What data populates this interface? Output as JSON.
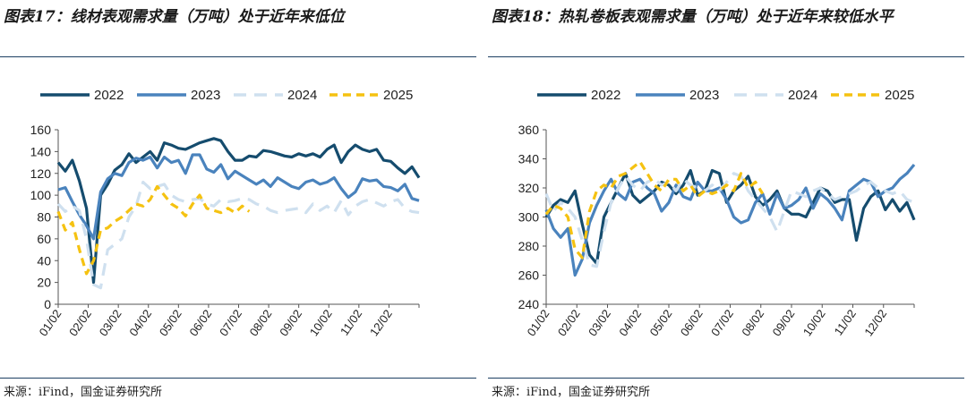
{
  "panels": [
    {
      "title": "图表17：线材表观需求量（万吨）处于近年来低位",
      "source": "来源：iFind，国金证券研究所"
    },
    {
      "title": "图表18：热轧卷板表观需求量（万吨）处于近年来较低水平",
      "source": "来源：iFind，国金证券研究所"
    }
  ],
  "colors": {
    "2022": "#154c6e",
    "2023": "#4a83bd",
    "2024": "#cfe0ef",
    "2025": "#f5c211",
    "rule": "#1d3f63"
  },
  "chart_data": [
    {
      "type": "line",
      "ylim": [
        0,
        160
      ],
      "yticks": [
        0,
        20,
        40,
        60,
        80,
        100,
        120,
        140,
        160
      ],
      "xlim": [
        0,
        51
      ],
      "xticks": [
        "01/02",
        "02/02",
        "03/02",
        "04/02",
        "05/02",
        "06/02",
        "07/02",
        "08/02",
        "09/02",
        "10/02",
        "11/02",
        "12/02"
      ],
      "grid": false,
      "legend_position": "top",
      "series": [
        {
          "name": "2022",
          "style": "solid",
          "x": [
            0,
            1,
            2,
            3,
            4,
            5,
            6,
            7,
            8,
            9,
            10,
            11,
            12,
            13,
            14,
            15,
            16,
            17,
            18,
            19,
            20,
            21,
            22,
            23,
            24,
            25,
            26,
            27,
            28,
            29,
            30,
            31,
            32,
            33,
            34,
            35,
            36,
            37,
            38,
            39,
            40,
            41,
            42,
            43,
            44,
            45,
            46,
            47,
            48,
            49,
            50,
            51
          ],
          "values": [
            130,
            122,
            132,
            113,
            88,
            20,
            100,
            110,
            123,
            128,
            138,
            130,
            135,
            140,
            132,
            148,
            146,
            143,
            142,
            145,
            148,
            150,
            152,
            150,
            140,
            132,
            132,
            136,
            135,
            141,
            140,
            138,
            136,
            135,
            138,
            136,
            138,
            135,
            142,
            146,
            130,
            140,
            146,
            142,
            140,
            142,
            132,
            131,
            125,
            120,
            126,
            116
          ]
        },
        {
          "name": "2023",
          "style": "solid",
          "x": [
            0,
            1,
            2,
            3,
            4,
            5,
            6,
            7,
            8,
            9,
            10,
            11,
            12,
            13,
            14,
            15,
            16,
            17,
            18,
            19,
            20,
            21,
            22,
            23,
            24,
            25,
            26,
            27,
            28,
            29,
            30,
            31,
            32,
            33,
            34,
            35,
            36,
            37,
            38,
            39,
            40,
            41,
            42,
            43,
            44,
            45,
            46,
            47,
            48,
            49,
            50,
            51
          ],
          "values": [
            105,
            107,
            94,
            82,
            72,
            60,
            103,
            115,
            120,
            118,
            130,
            134,
            132,
            135,
            125,
            135,
            130,
            132,
            120,
            137,
            137,
            124,
            121,
            128,
            115,
            122,
            118,
            114,
            110,
            114,
            108,
            116,
            112,
            108,
            106,
            112,
            114,
            110,
            112,
            116,
            106,
            98,
            103,
            115,
            113,
            114,
            108,
            107,
            104,
            110,
            97,
            95
          ]
        },
        {
          "name": "2024",
          "style": "dashed",
          "x": [
            0,
            1,
            2,
            3,
            4,
            5,
            6,
            7,
            8,
            9,
            10,
            11,
            12,
            13,
            14,
            15,
            16,
            17,
            18,
            19,
            20,
            21,
            22,
            23,
            24,
            25,
            26,
            27,
            28,
            29,
            30,
            31,
            32,
            33,
            34,
            35,
            36,
            37,
            38,
            39,
            40,
            41,
            42,
            43,
            44,
            45,
            46,
            47,
            48,
            49,
            50,
            51
          ],
          "values": [
            92,
            85,
            90,
            86,
            60,
            18,
            15,
            50,
            55,
            60,
            80,
            90,
            112,
            106,
            108,
            110,
            100,
            96,
            94,
            96,
            97,
            92,
            90,
            96,
            94,
            95,
            97,
            96,
            92,
            90,
            86,
            84,
            86,
            87,
            88,
            84,
            92,
            86,
            90,
            84,
            95,
            82,
            90,
            94,
            96,
            93,
            90,
            94,
            96,
            88,
            85,
            84
          ]
        },
        {
          "name": "2025",
          "style": "dashed",
          "x": [
            0,
            1,
            2,
            3,
            4,
            5,
            6,
            7,
            8,
            9,
            10,
            11,
            12,
            13,
            14,
            15,
            16,
            17,
            18,
            19,
            20,
            21,
            22,
            23,
            24,
            25,
            26,
            27
          ],
          "values": [
            85,
            68,
            75,
            50,
            28,
            40,
            68,
            70,
            76,
            80,
            86,
            92,
            90,
            96,
            108,
            100,
            92,
            88,
            81,
            92,
            100,
            88,
            86,
            84,
            88,
            84,
            90,
            85
          ]
        }
      ]
    },
    {
      "type": "line",
      "ylim": [
        240,
        360
      ],
      "yticks": [
        240,
        260,
        280,
        300,
        320,
        340,
        360
      ],
      "xlim": [
        0,
        51
      ],
      "xticks": [
        "01/02",
        "02/02",
        "03/02",
        "04/02",
        "05/02",
        "06/02",
        "07/02",
        "08/02",
        "09/02",
        "10/02",
        "11/02",
        "12/02"
      ],
      "grid": false,
      "legend_position": "top",
      "series": [
        {
          "name": "2022",
          "style": "solid",
          "x": [
            0,
            1,
            2,
            3,
            4,
            5,
            6,
            7,
            8,
            9,
            10,
            11,
            12,
            13,
            14,
            15,
            16,
            17,
            18,
            19,
            20,
            21,
            22,
            23,
            24,
            25,
            26,
            27,
            28,
            29,
            30,
            31,
            32,
            33,
            34,
            35,
            36,
            37,
            38,
            39,
            40,
            41,
            42,
            43,
            44,
            45,
            46,
            47,
            48,
            49,
            50,
            51
          ],
          "values": [
            300,
            308,
            312,
            310,
            318,
            295,
            274,
            268,
            300,
            310,
            320,
            330,
            315,
            310,
            314,
            318,
            324,
            322,
            316,
            322,
            332,
            315,
            318,
            332,
            330,
            310,
            318,
            322,
            328,
            314,
            308,
            312,
            318,
            306,
            302,
            302,
            300,
            310,
            320,
            318,
            310,
            312,
            312,
            284,
            306,
            314,
            318,
            305,
            312,
            304,
            310,
            298
          ]
        },
        {
          "name": "2023",
          "style": "solid",
          "x": [
            0,
            1,
            2,
            3,
            4,
            5,
            6,
            7,
            8,
            9,
            10,
            11,
            12,
            13,
            14,
            15,
            16,
            17,
            18,
            19,
            20,
            21,
            22,
            23,
            24,
            25,
            26,
            27,
            28,
            29,
            30,
            31,
            32,
            33,
            34,
            35,
            36,
            37,
            38,
            39,
            40,
            41,
            42,
            43,
            44,
            45,
            46,
            47,
            48,
            49,
            50,
            51
          ],
          "values": [
            305,
            292,
            286,
            292,
            260,
            271,
            296,
            308,
            318,
            326,
            316,
            312,
            324,
            326,
            320,
            316,
            304,
            310,
            322,
            314,
            312,
            324,
            318,
            318,
            320,
            312,
            300,
            296,
            298,
            310,
            316,
            302,
            316,
            306,
            308,
            312,
            320,
            306,
            316,
            312,
            306,
            298,
            318,
            322,
            326,
            324,
            314,
            318,
            320,
            326,
            330,
            336
          ]
        },
        {
          "name": "2024",
          "style": "dashed",
          "x": [
            0,
            1,
            2,
            3,
            4,
            5,
            6,
            7,
            8,
            9,
            10,
            11,
            12,
            13,
            14,
            15,
            16,
            17,
            18,
            19,
            20,
            21,
            22,
            23,
            24,
            25,
            26,
            27,
            28,
            29,
            30,
            31,
            32,
            33,
            34,
            35,
            36,
            37,
            38,
            39,
            40,
            41,
            42,
            43,
            44,
            45,
            46,
            47,
            48,
            49,
            50,
            51
          ],
          "values": [
            316,
            304,
            310,
            306,
            300,
            284,
            267,
            266,
            290,
            310,
            320,
            328,
            322,
            318,
            324,
            326,
            322,
            324,
            318,
            326,
            322,
            320,
            318,
            322,
            318,
            324,
            330,
            328,
            318,
            312,
            306,
            300,
            290,
            304,
            318,
            316,
            314,
            318,
            320,
            316,
            312,
            314,
            316,
            318,
            322,
            324,
            320,
            318,
            316,
            318,
            312,
            310
          ]
        },
        {
          "name": "2025",
          "style": "dashed",
          "x": [
            0,
            1,
            2,
            3,
            4,
            5,
            6,
            7,
            8,
            9,
            10,
            11,
            12,
            13,
            14,
            15,
            16,
            17,
            18,
            19,
            20,
            21,
            22,
            23,
            24,
            25,
            26,
            27,
            28,
            29,
            30
          ],
          "values": [
            302,
            308,
            306,
            300,
            278,
            272,
            304,
            318,
            322,
            320,
            328,
            330,
            334,
            338,
            330,
            322,
            318,
            326,
            326,
            318,
            322,
            314,
            318,
            316,
            318,
            322,
            318,
            330,
            320,
            324,
            316
          ]
        }
      ]
    }
  ]
}
